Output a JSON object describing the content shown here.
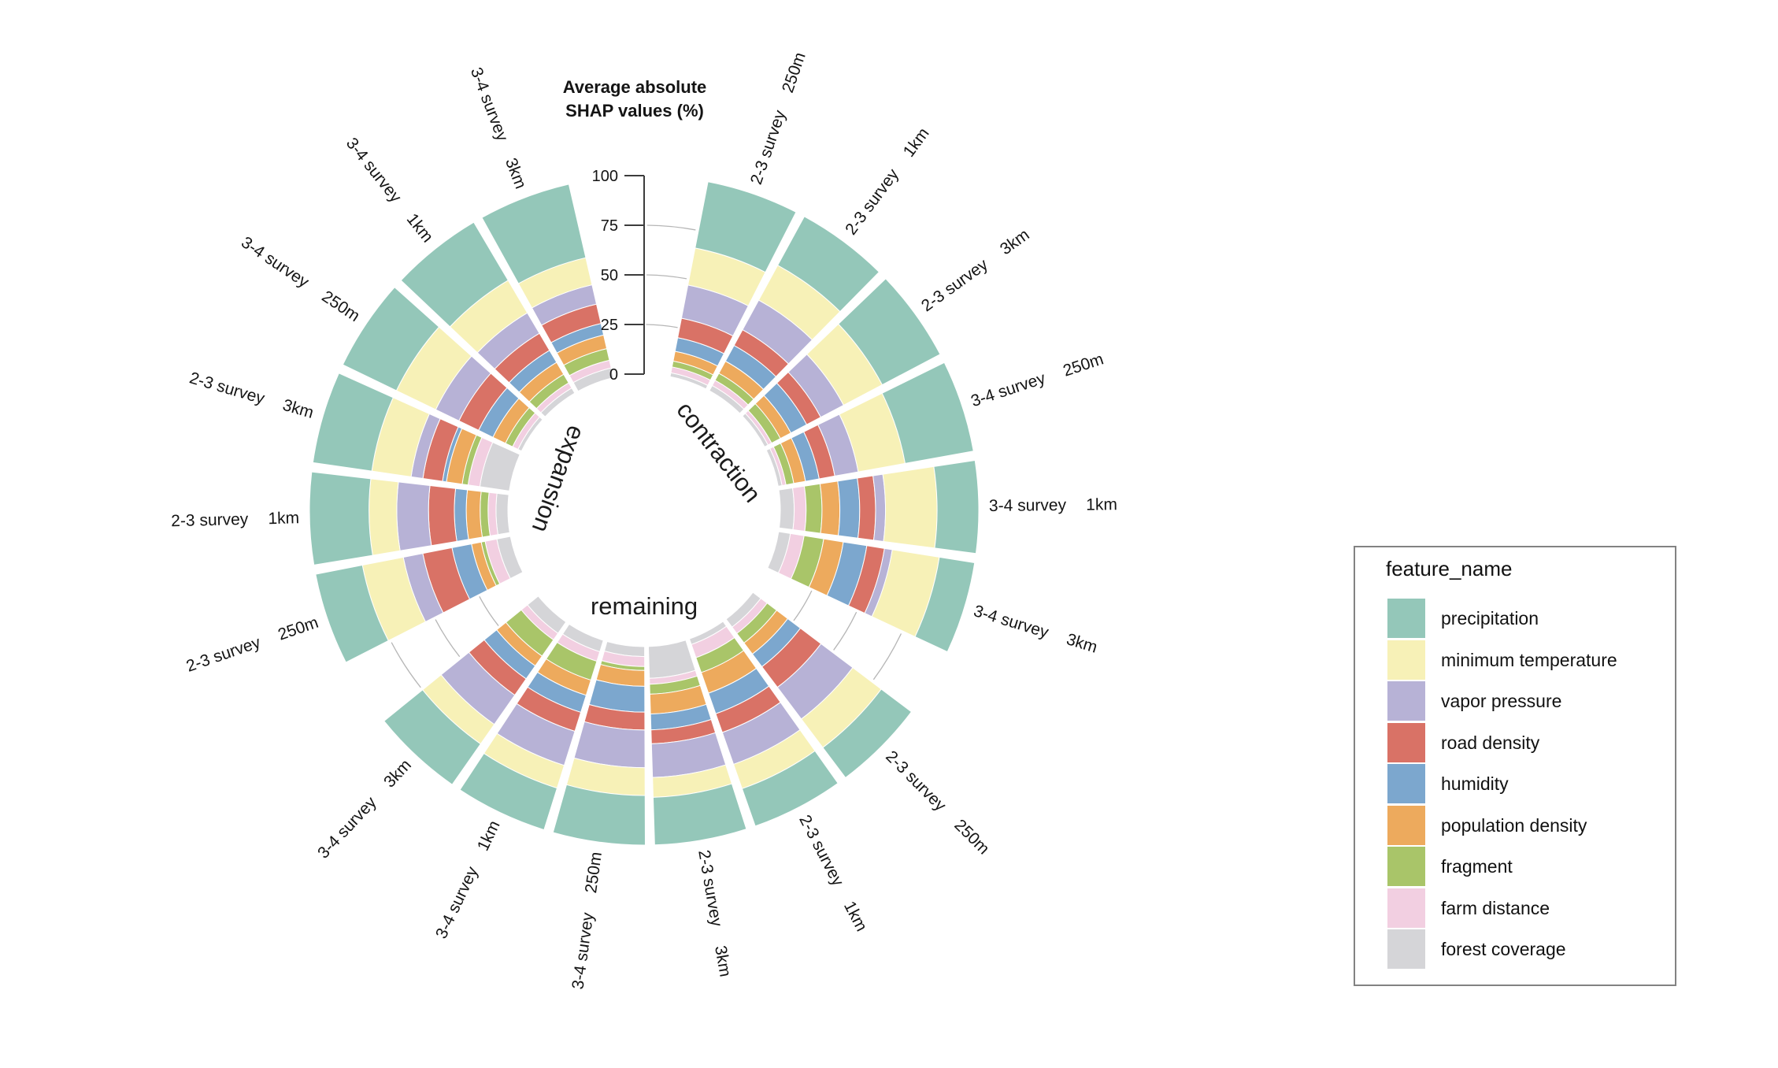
{
  "figure": {
    "background": "#ffffff"
  },
  "axis": {
    "title_line1": "Average absolute",
    "title_line2": "SHAP values (%)",
    "ticks": [
      0,
      25,
      50,
      75,
      100
    ],
    "gridline_values": [
      25,
      50,
      75
    ],
    "range": [
      0,
      100
    ]
  },
  "legend": {
    "title": "feature_name",
    "items": [
      {
        "label": "precipitation"
      },
      {
        "label": "minimum temperature"
      },
      {
        "label": "vapor pressure"
      },
      {
        "label": "road density"
      },
      {
        "label": "humidity"
      },
      {
        "label": "population density"
      },
      {
        "label": "fragment"
      },
      {
        "label": "farm distance"
      },
      {
        "label": "forest coverage"
      }
    ]
  },
  "chart_data": {
    "type": "bar",
    "variant": "circular-stacked-percent",
    "title": "Average absolute SHAP values (%)",
    "ylim": [
      0,
      100
    ],
    "grid": "arc gridlines at 25/50/75 visible in sector gaps",
    "legend_position": "right",
    "features": [
      "precipitation",
      "minimum temperature",
      "vapor pressure",
      "road density",
      "humidity",
      "population density",
      "fragment",
      "farm distance",
      "forest coverage"
    ],
    "colors": {
      "precipitation": "#94C7B9",
      "minimum temperature": "#F7F1B7",
      "vapor pressure": "#B7B2D6",
      "road density": "#D97266",
      "humidity": "#7CA7CE",
      "population density": "#EDAA5D",
      "fragment": "#A9C569",
      "farm distance": "#F2CFE1",
      "forest coverage": "#D5D5D8"
    },
    "stack_order": "first feature outermost, last feature innermost; each bar totals 100%",
    "groups": [
      {
        "name": "contraction",
        "bars": [
          {
            "survey": "2-3 survey",
            "distance": "250m",
            "values": [
              34,
              19,
              17,
              10,
              7,
              5,
              3,
              3,
              2
            ]
          },
          {
            "survey": "2-3 survey",
            "distance": "1km",
            "values": [
              28,
              20,
              17,
              9,
              9,
              7,
              4,
              3,
              3
            ]
          },
          {
            "survey": "2-3 survey",
            "distance": "3km",
            "values": [
              33,
              22,
              13,
              8,
              9,
              6,
              5,
              2,
              2
            ]
          },
          {
            "survey": "3-4 survey",
            "distance": "250m",
            "values": [
              35,
              24,
              12,
              8,
              7,
              6,
              4,
              2,
              2
            ]
          },
          {
            "survey": "3-4 survey",
            "distance": "1km",
            "values": [
              21,
              26,
              5,
              8,
              10,
              9,
              8,
              6,
              7
            ]
          },
          {
            "survey": "3-4 survey",
            "distance": "3km",
            "values": [
              18,
              24,
              4,
              9,
              12,
              10,
              10,
              7,
              6
            ]
          }
        ]
      },
      {
        "name": "remaining",
        "bars": [
          {
            "survey": "2-3 survey",
            "distance": "250m",
            "values": [
              19,
              18,
              20,
              13,
              8,
              7,
              6,
              4,
              5
            ]
          },
          {
            "survey": "2-3 survey",
            "distance": "1km",
            "values": [
              20,
              13,
              17,
              10,
              11,
              11,
              8,
              7,
              3
            ]
          },
          {
            "survey": "2-3 survey",
            "distance": "3km",
            "values": [
              24,
              10,
              17,
              7,
              8,
              10,
              5,
              3,
              16
            ]
          },
          {
            "survey": "3-4 survey",
            "distance": "250m",
            "values": [
              25,
              14,
              19,
              9,
              13,
              8,
              2,
              5,
              5
            ]
          },
          {
            "survey": "3-4 survey",
            "distance": "1km",
            "values": [
              22,
              12,
              18,
              10,
              9,
              8,
              10,
              5,
              6
            ]
          },
          {
            "survey": "3-4 survey",
            "distance": "3km",
            "values": [
              25,
              12,
              18,
              10,
              8,
              6,
              10,
              4,
              7
            ]
          }
        ]
      },
      {
        "name": "expansion",
        "bars": [
          {
            "survey": "2-3 survey",
            "distance": "250m",
            "values": [
              24,
              21,
              10,
              15,
              10,
              5,
              2,
              6,
              7
            ]
          },
          {
            "survey": "2-3 survey",
            "distance": "1km",
            "values": [
              30,
              14,
              16,
              13,
              6,
              7,
              4,
              4,
              6
            ]
          },
          {
            "survey": "2-3 survey",
            "distance": "3km",
            "values": [
              30,
              20,
              6,
              10,
              2,
              8,
              3,
              6,
              15
            ]
          },
          {
            "survey": "3-4 survey",
            "distance": "250m",
            "values": [
              30,
              22,
              13,
              11,
              8,
              7,
              4,
              3,
              2
            ]
          },
          {
            "survey": "3-4 survey",
            "distance": "1km",
            "values": [
              34,
              19,
              12,
              10,
              7,
              7,
              5,
              3,
              3
            ]
          },
          {
            "survey": "3-4 survey",
            "distance": "3km",
            "values": [
              38,
              14,
              10,
              10,
              6,
              7,
              6,
              4,
              5
            ]
          }
        ]
      }
    ],
    "layout": {
      "start_angle_deg": 11,
      "bar_width_deg": 16,
      "bar_gap_deg": 1.6,
      "group_gap_deg": 12,
      "top_gap_left_deg": 13,
      "top_gap_right_deg": 11,
      "inner_radius_frac": 0.407,
      "direction": "clockwise from top: contraction, remaining, expansion"
    }
  }
}
